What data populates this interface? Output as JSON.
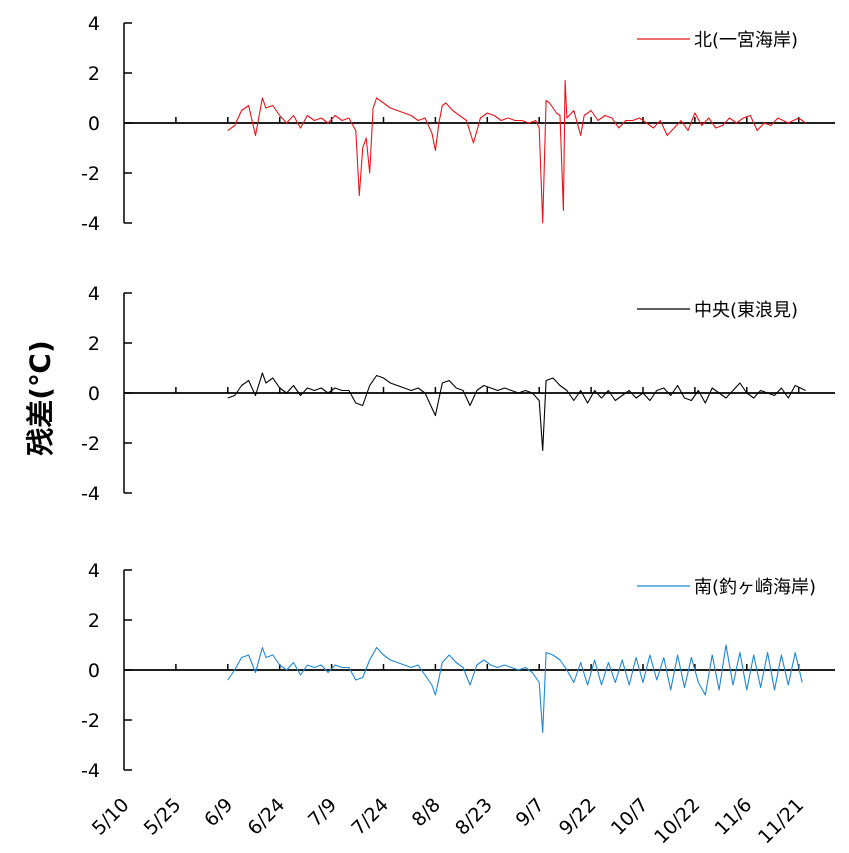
{
  "chart_data": {
    "type": "line",
    "ylabel": "残差(℃)",
    "x_tick_labels": [
      "5/10",
      "5/25",
      "6/9",
      "6/24",
      "7/9",
      "7/24",
      "8/8",
      "8/23",
      "9/7",
      "9/22",
      "10/7",
      "10/22",
      "11/6",
      "11/21"
    ],
    "y_tick_labels": [
      "4",
      "2",
      "0",
      "-2",
      "-4"
    ],
    "ylim": [
      -4,
      4
    ],
    "grid": false,
    "legend_position": "top-right",
    "panels": [
      {
        "legend": "北(一宮海岸)",
        "color": "#e8141b",
        "date_range": [
          "6/9",
          "11/23"
        ],
        "series": [
          [
            0,
            -0.3
          ],
          [
            2,
            -0.1
          ],
          [
            4,
            0.5
          ],
          [
            6,
            0.7
          ],
          [
            8,
            -0.5
          ],
          [
            10,
            1.0
          ],
          [
            11,
            0.6
          ],
          [
            13,
            0.7
          ],
          [
            15,
            0.3
          ],
          [
            17,
            0.0
          ],
          [
            19,
            0.3
          ],
          [
            21,
            -0.2
          ],
          [
            23,
            0.3
          ],
          [
            25,
            0.1
          ],
          [
            27,
            0.2
          ],
          [
            29,
            0.0
          ],
          [
            31,
            0.3
          ],
          [
            33,
            0.1
          ],
          [
            35,
            0.2
          ],
          [
            37,
            -0.3
          ],
          [
            38,
            -2.9
          ],
          [
            39,
            -1.0
          ],
          [
            40,
            -0.6
          ],
          [
            41,
            -2.0
          ],
          [
            42,
            0.6
          ],
          [
            43,
            1.0
          ],
          [
            45,
            0.8
          ],
          [
            47,
            0.6
          ],
          [
            49,
            0.5
          ],
          [
            51,
            0.4
          ],
          [
            53,
            0.3
          ],
          [
            55,
            0.1
          ],
          [
            57,
            0.2
          ],
          [
            59,
            -0.4
          ],
          [
            60,
            -1.1
          ],
          [
            61,
            0.0
          ],
          [
            62,
            0.7
          ],
          [
            63,
            0.8
          ],
          [
            65,
            0.5
          ],
          [
            67,
            0.3
          ],
          [
            69,
            0.1
          ],
          [
            71,
            -0.8
          ],
          [
            73,
            0.2
          ],
          [
            75,
            0.4
          ],
          [
            77,
            0.3
          ],
          [
            79,
            0.1
          ],
          [
            81,
            0.2
          ],
          [
            83,
            0.1
          ],
          [
            85,
            0.1
          ],
          [
            87,
            0.0
          ],
          [
            89,
            0.1
          ],
          [
            90,
            -0.2
          ],
          [
            91,
            -4.0
          ],
          [
            92,
            0.9
          ],
          [
            93,
            0.8
          ],
          [
            95,
            0.4
          ],
          [
            96,
            0.3
          ],
          [
            97,
            -3.5
          ],
          [
            97.5,
            1.7
          ],
          [
            98,
            0.2
          ],
          [
            100,
            0.5
          ],
          [
            102,
            -0.5
          ],
          [
            103,
            0.3
          ],
          [
            105,
            0.5
          ],
          [
            107,
            0.1
          ],
          [
            109,
            0.3
          ],
          [
            111,
            0.2
          ],
          [
            113,
            -0.2
          ],
          [
            115,
            0.1
          ],
          [
            117,
            0.1
          ],
          [
            119,
            0.2
          ],
          [
            121,
            0.0
          ],
          [
            123,
            -0.2
          ],
          [
            125,
            0.1
          ],
          [
            127,
            -0.5
          ],
          [
            129,
            -0.2
          ],
          [
            131,
            0.1
          ],
          [
            133,
            -0.3
          ],
          [
            135,
            0.4
          ],
          [
            137,
            -0.1
          ],
          [
            139,
            0.2
          ],
          [
            141,
            -0.2
          ],
          [
            143,
            -0.1
          ],
          [
            145,
            0.2
          ],
          [
            147,
            0.0
          ],
          [
            149,
            0.2
          ],
          [
            151,
            0.3
          ],
          [
            153,
            -0.3
          ],
          [
            155,
            0.0
          ],
          [
            157,
            -0.1
          ],
          [
            159,
            0.2
          ],
          [
            162,
            0.0
          ],
          [
            165,
            0.2
          ],
          [
            167,
            0.0
          ]
        ]
      },
      {
        "legend": "中央(東浪見)",
        "color": "#000000",
        "date_range": [
          "6/9",
          "11/23"
        ],
        "series": [
          [
            0,
            -0.2
          ],
          [
            2,
            -0.1
          ],
          [
            4,
            0.3
          ],
          [
            6,
            0.5
          ],
          [
            8,
            -0.1
          ],
          [
            10,
            0.8
          ],
          [
            11,
            0.4
          ],
          [
            13,
            0.6
          ],
          [
            15,
            0.2
          ],
          [
            17,
            0.0
          ],
          [
            19,
            0.3
          ],
          [
            21,
            -0.1
          ],
          [
            23,
            0.2
          ],
          [
            25,
            0.1
          ],
          [
            27,
            0.2
          ],
          [
            29,
            0.0
          ],
          [
            31,
            0.2
          ],
          [
            33,
            0.1
          ],
          [
            35,
            0.1
          ],
          [
            37,
            -0.4
          ],
          [
            39,
            -0.5
          ],
          [
            41,
            0.3
          ],
          [
            43,
            0.7
          ],
          [
            45,
            0.6
          ],
          [
            47,
            0.4
          ],
          [
            49,
            0.3
          ],
          [
            51,
            0.2
          ],
          [
            53,
            0.1
          ],
          [
            55,
            0.2
          ],
          [
            57,
            0.0
          ],
          [
            59,
            -0.6
          ],
          [
            60,
            -0.9
          ],
          [
            62,
            0.4
          ],
          [
            64,
            0.5
          ],
          [
            66,
            0.2
          ],
          [
            68,
            0.1
          ],
          [
            70,
            -0.5
          ],
          [
            72,
            0.1
          ],
          [
            74,
            0.3
          ],
          [
            76,
            0.2
          ],
          [
            78,
            0.1
          ],
          [
            80,
            0.2
          ],
          [
            82,
            0.1
          ],
          [
            84,
            0.0
          ],
          [
            86,
            0.1
          ],
          [
            88,
            0.0
          ],
          [
            90,
            -0.3
          ],
          [
            91,
            -2.3
          ],
          [
            92,
            0.5
          ],
          [
            94,
            0.6
          ],
          [
            96,
            0.3
          ],
          [
            98,
            0.1
          ],
          [
            100,
            -0.3
          ],
          [
            102,
            0.1
          ],
          [
            104,
            -0.4
          ],
          [
            106,
            0.1
          ],
          [
            108,
            -0.2
          ],
          [
            110,
            0.1
          ],
          [
            112,
            -0.3
          ],
          [
            114,
            -0.1
          ],
          [
            116,
            0.1
          ],
          [
            118,
            -0.2
          ],
          [
            120,
            0.0
          ],
          [
            122,
            -0.3
          ],
          [
            124,
            0.1
          ],
          [
            126,
            0.2
          ],
          [
            128,
            -0.1
          ],
          [
            130,
            0.3
          ],
          [
            132,
            -0.2
          ],
          [
            134,
            -0.3
          ],
          [
            136,
            0.1
          ],
          [
            138,
            -0.4
          ],
          [
            140,
            0.2
          ],
          [
            142,
            0.0
          ],
          [
            144,
            -0.2
          ],
          [
            146,
            0.1
          ],
          [
            148,
            0.4
          ],
          [
            150,
            0.0
          ],
          [
            152,
            -0.2
          ],
          [
            154,
            0.1
          ],
          [
            156,
            0.0
          ],
          [
            158,
            -0.1
          ],
          [
            160,
            0.2
          ],
          [
            162,
            -0.2
          ],
          [
            164,
            0.3
          ],
          [
            167,
            0.1
          ]
        ]
      },
      {
        "legend": "南(釣ヶ崎海岸)",
        "color": "#1f86d3",
        "date_range": [
          "6/9",
          "11/23"
        ],
        "series": [
          [
            0,
            -0.4
          ],
          [
            2,
            0.0
          ],
          [
            4,
            0.5
          ],
          [
            6,
            0.6
          ],
          [
            8,
            -0.1
          ],
          [
            10,
            0.9
          ],
          [
            11,
            0.5
          ],
          [
            13,
            0.6
          ],
          [
            15,
            0.2
          ],
          [
            17,
            0.0
          ],
          [
            19,
            0.3
          ],
          [
            21,
            -0.2
          ],
          [
            23,
            0.2
          ],
          [
            25,
            0.1
          ],
          [
            27,
            0.2
          ],
          [
            29,
            -0.1
          ],
          [
            31,
            0.2
          ],
          [
            33,
            0.1
          ],
          [
            35,
            0.1
          ],
          [
            37,
            -0.4
          ],
          [
            39,
            -0.3
          ],
          [
            41,
            0.4
          ],
          [
            43,
            0.9
          ],
          [
            45,
            0.6
          ],
          [
            47,
            0.4
          ],
          [
            49,
            0.3
          ],
          [
            51,
            0.2
          ],
          [
            53,
            0.1
          ],
          [
            55,
            0.2
          ],
          [
            57,
            -0.2
          ],
          [
            59,
            -0.6
          ],
          [
            60,
            -1.0
          ],
          [
            62,
            0.3
          ],
          [
            64,
            0.6
          ],
          [
            66,
            0.3
          ],
          [
            68,
            0.1
          ],
          [
            70,
            -0.6
          ],
          [
            72,
            0.2
          ],
          [
            74,
            0.4
          ],
          [
            76,
            0.2
          ],
          [
            78,
            0.1
          ],
          [
            80,
            0.2
          ],
          [
            82,
            0.1
          ],
          [
            84,
            0.0
          ],
          [
            86,
            0.1
          ],
          [
            88,
            -0.1
          ],
          [
            90,
            -0.5
          ],
          [
            91,
            -2.5
          ],
          [
            92,
            0.7
          ],
          [
            94,
            0.6
          ],
          [
            96,
            0.4
          ],
          [
            98,
            0.0
          ],
          [
            100,
            -0.5
          ],
          [
            102,
            0.3
          ],
          [
            104,
            -0.6
          ],
          [
            106,
            0.4
          ],
          [
            108,
            -0.6
          ],
          [
            110,
            0.3
          ],
          [
            112,
            -0.5
          ],
          [
            114,
            0.4
          ],
          [
            116,
            -0.6
          ],
          [
            118,
            0.5
          ],
          [
            120,
            -0.5
          ],
          [
            122,
            0.6
          ],
          [
            124,
            -0.4
          ],
          [
            126,
            0.5
          ],
          [
            128,
            -0.8
          ],
          [
            130,
            0.6
          ],
          [
            132,
            -0.7
          ],
          [
            134,
            0.5
          ],
          [
            136,
            -0.5
          ],
          [
            138,
            -1.0
          ],
          [
            140,
            0.6
          ],
          [
            142,
            -0.8
          ],
          [
            144,
            1.0
          ],
          [
            146,
            -0.6
          ],
          [
            148,
            0.7
          ],
          [
            150,
            -0.8
          ],
          [
            152,
            0.6
          ],
          [
            154,
            -0.7
          ],
          [
            156,
            0.7
          ],
          [
            158,
            -0.8
          ],
          [
            160,
            0.6
          ],
          [
            162,
            -0.6
          ],
          [
            164,
            0.7
          ],
          [
            166,
            -0.5
          ]
        ]
      }
    ]
  }
}
